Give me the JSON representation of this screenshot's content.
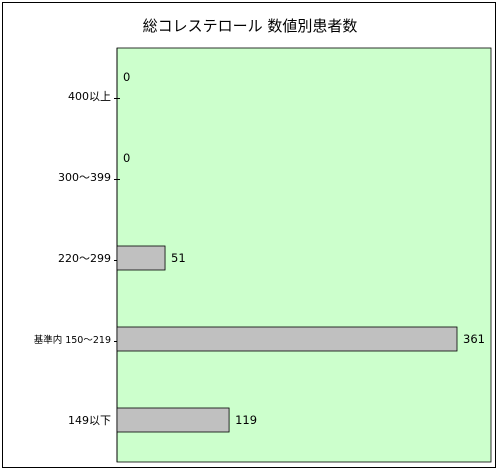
{
  "chart_data": {
    "type": "bar",
    "orientation": "horizontal",
    "title": "総コレステロール 数値別患者数",
    "categories": [
      "400以上",
      "300～399",
      "220～299",
      "基準内 150～219",
      "149以下"
    ],
    "values": [
      0,
      0,
      51,
      361,
      119
    ],
    "xlim": [
      0,
      400
    ],
    "grid": false,
    "legend": "none",
    "colors": {
      "plot_background": "#ccffcc",
      "bar_fill": "#c0c0c0",
      "bar_stroke": "#000000"
    }
  }
}
